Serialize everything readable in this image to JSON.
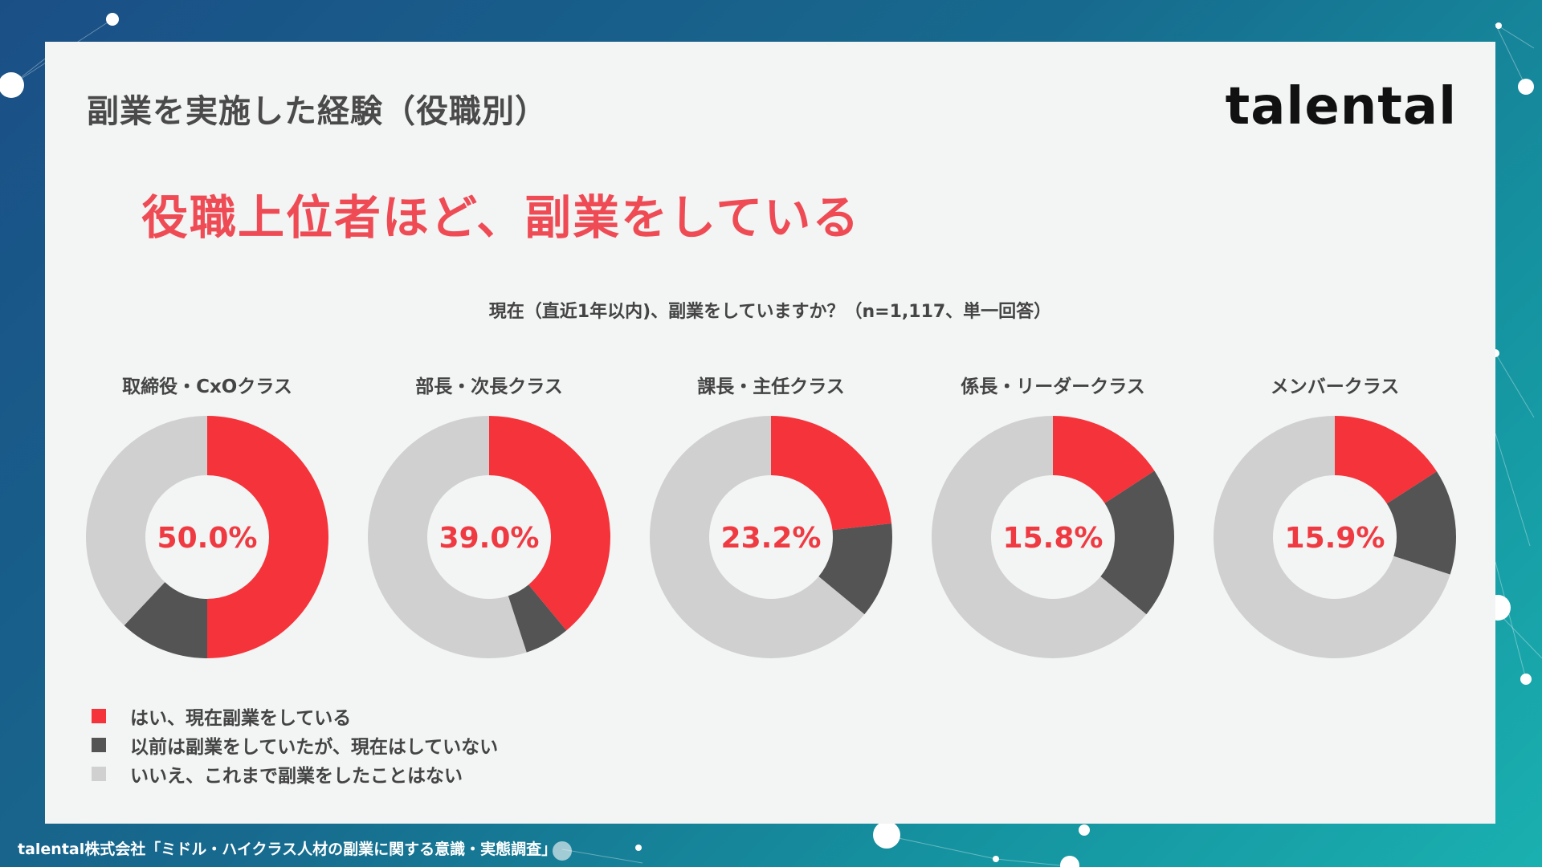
{
  "header": {
    "title": "副業を実施した経験（役職別）",
    "logo": "talental"
  },
  "headline": "役職上位者ほど、副業をしている",
  "question": "現在（直近1年以内)、副業をしていますか？（n=1,117、単一回答）",
  "chart_data": {
    "type": "pie",
    "style": "donut",
    "series_names": [
      "はい、現在副業をしている",
      "以前は副業をしていたが、現在はしていない",
      "いいえ、これまで副業をしたことはない"
    ],
    "colors": [
      "#f5333a",
      "#545454",
      "#d0d0d0"
    ],
    "charts": [
      {
        "category": "取締役・CxOクラス",
        "center_label": "50.0%",
        "values": [
          50.0,
          12.0,
          38.0
        ]
      },
      {
        "category": "部長・次長クラス",
        "center_label": "39.0%",
        "values": [
          39.0,
          6.0,
          55.0
        ]
      },
      {
        "category": "課長・主任クラス",
        "center_label": "23.2%",
        "values": [
          23.2,
          12.8,
          64.0
        ]
      },
      {
        "category": "係長・リーダークラス",
        "center_label": "15.8%",
        "values": [
          15.8,
          20.2,
          64.0
        ]
      },
      {
        "category": "メンバークラス",
        "center_label": "15.9%",
        "values": [
          15.9,
          14.1,
          70.0
        ]
      }
    ],
    "legend_position": "bottom-left"
  },
  "footer": "talental株式会社「ミドル・ハイクラス人材の副業に関する意識・実態調査」"
}
